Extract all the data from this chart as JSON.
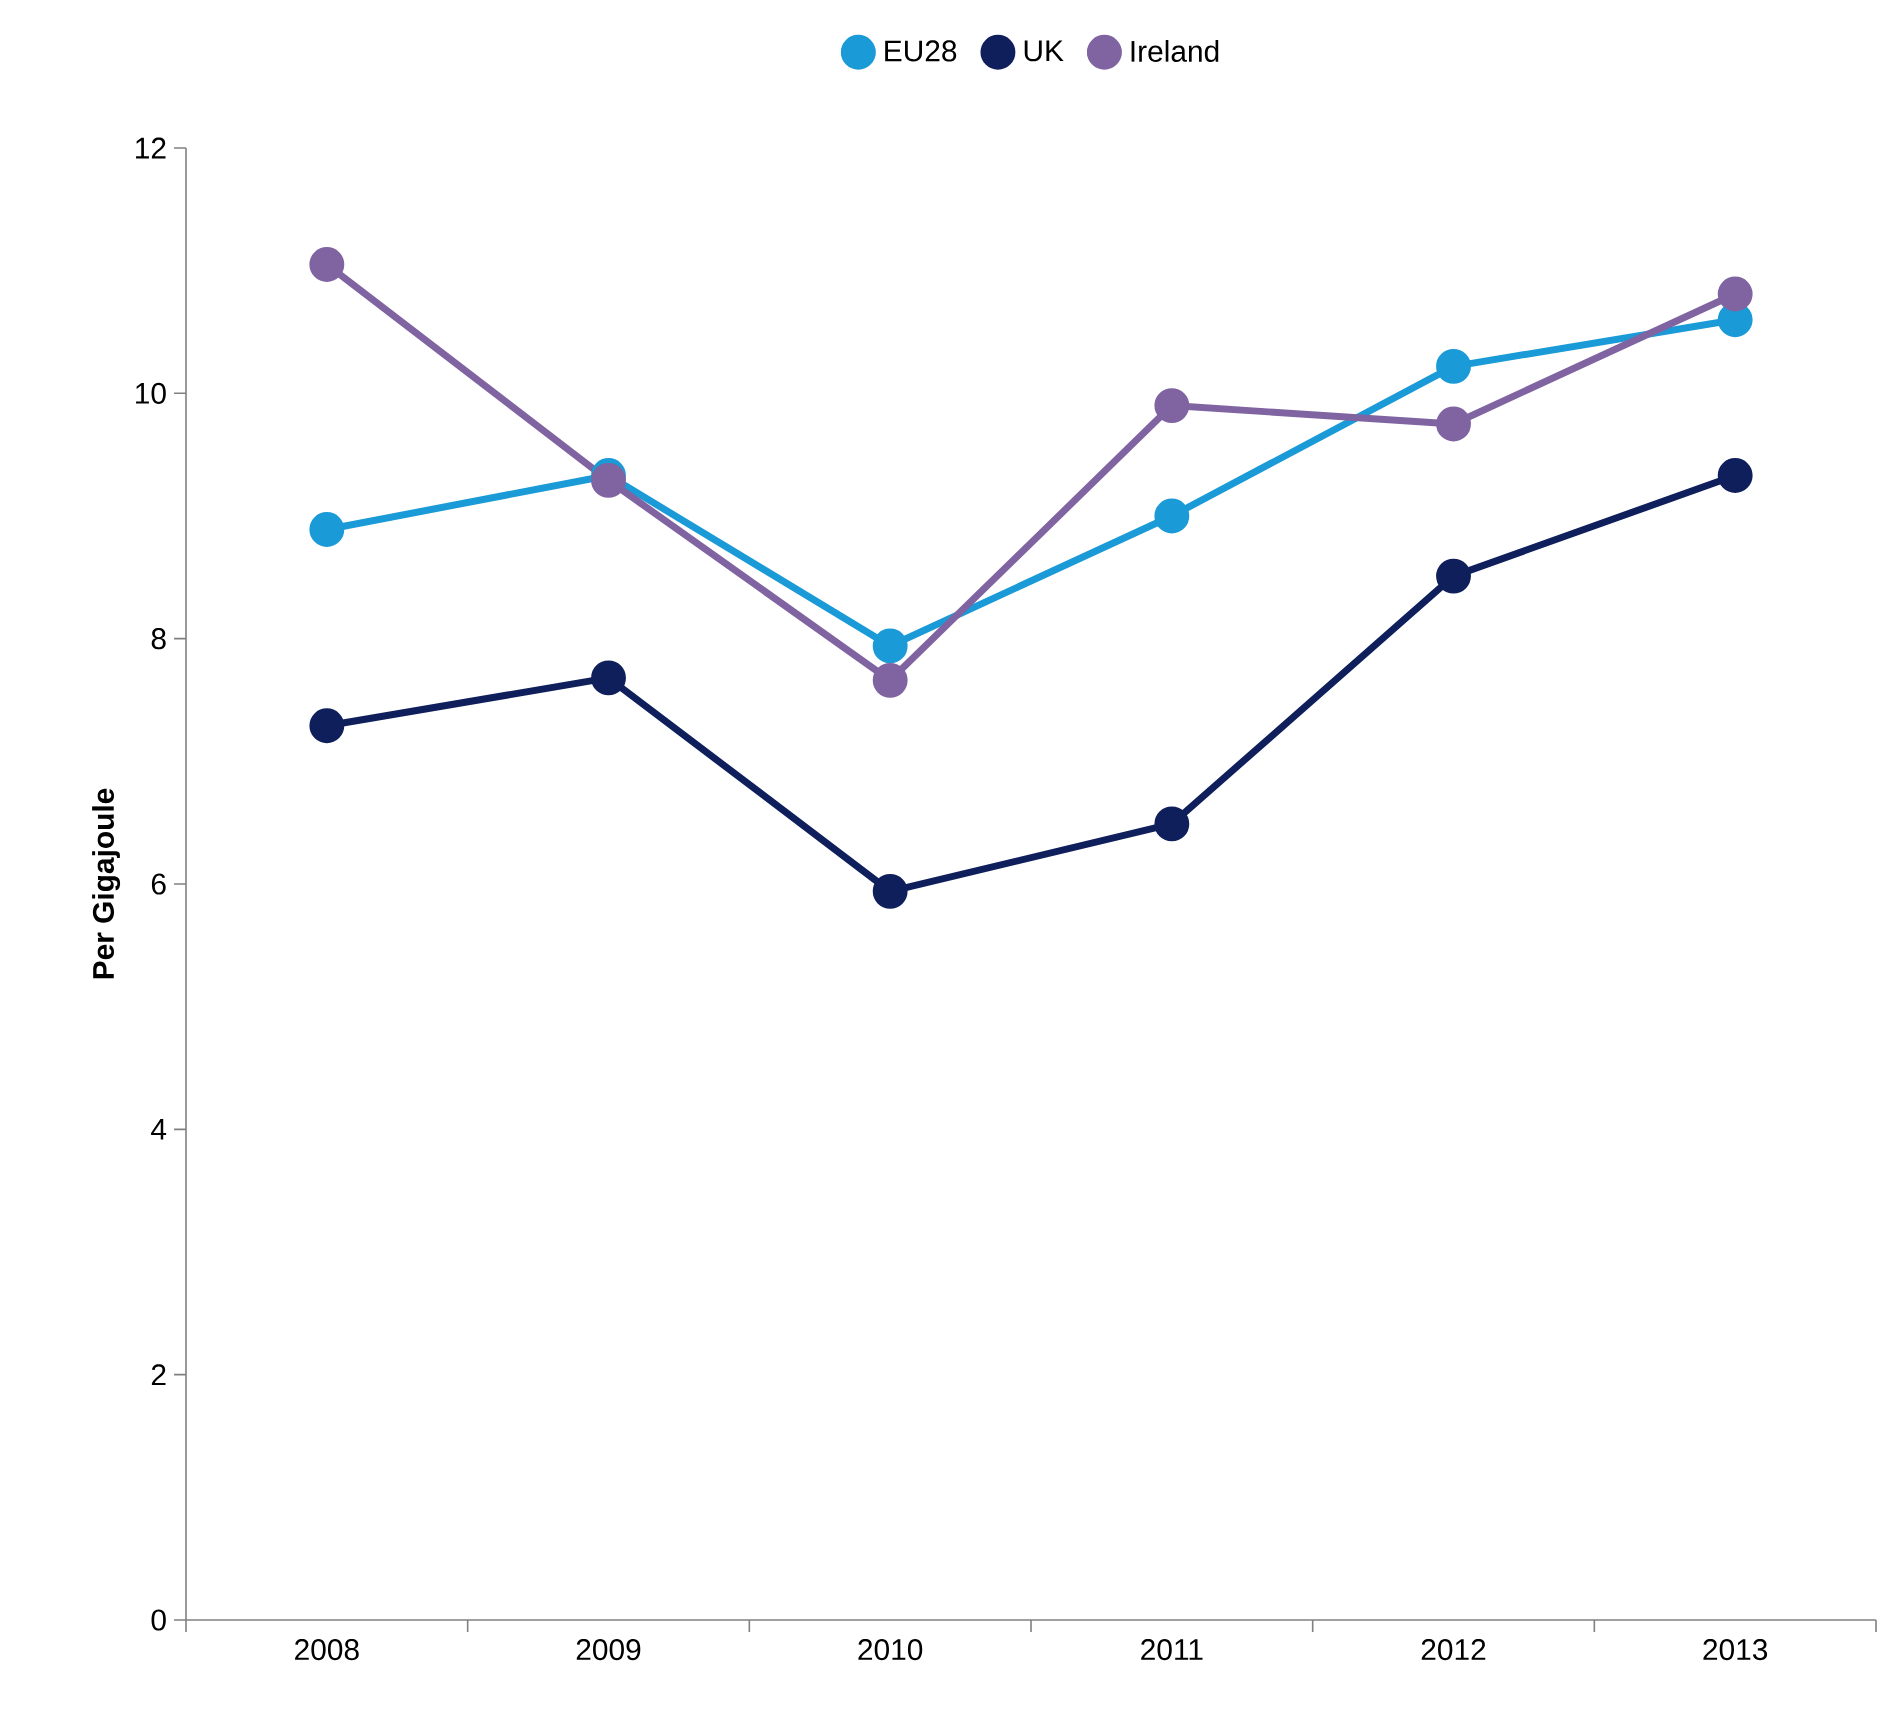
{
  "chart_data": {
    "type": "line",
    "ylabel": "Per Gigajoule",
    "categories": [
      "2008",
      "2009",
      "2010",
      "2011",
      "2012",
      "2013"
    ],
    "series": [
      {
        "name": "EU28",
        "color": "#1a9ad6",
        "values": [
          8.89,
          9.33,
          7.94,
          9.0,
          10.22,
          10.6
        ]
      },
      {
        "name": "UK",
        "color": "#0f1f5c",
        "values": [
          7.29,
          7.68,
          5.94,
          6.49,
          8.51,
          9.33
        ]
      },
      {
        "name": "Ireland",
        "color": "#8064a2",
        "values": [
          11.05,
          9.29,
          7.66,
          9.9,
          9.75,
          10.81
        ]
      }
    ],
    "ylim": [
      0,
      12
    ],
    "yticks": [
      0,
      2,
      4,
      6,
      8,
      10,
      12
    ],
    "grid": false,
    "legend": "top",
    "marker": "circle",
    "line_style": "solid"
  }
}
